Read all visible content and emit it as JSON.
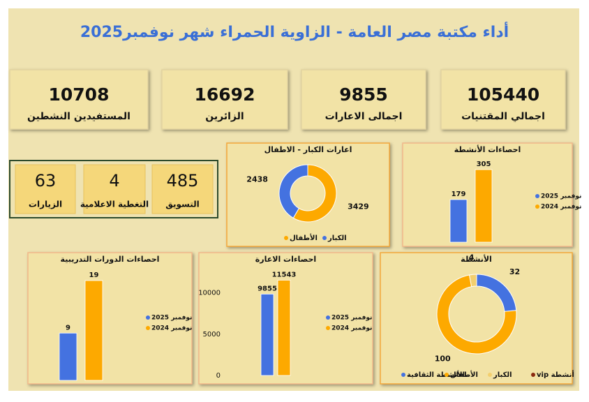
{
  "title": "أداء مكتبة مصر العامة - الزاوية الحمراء شهر نوفمبر2025",
  "kpis": [
    {
      "value": 105440,
      "label": "اجمالي المقتنيات"
    },
    {
      "value": 9855,
      "label": "اجمالى الاعارات"
    },
    {
      "value": 16692,
      "label": "الزائرين"
    },
    {
      "value": 10708,
      "label": "المستفيدين النشطين"
    }
  ],
  "small_kpis": [
    {
      "value": 485,
      "label": "التسويق"
    },
    {
      "value": 4,
      "label": "التغطية الاعلامية"
    },
    {
      "value": 63,
      "label": "الزيارات"
    }
  ],
  "chart_data": [
    {
      "type": "donut",
      "title": "اعارات الكبار - الاطفال",
      "categories": [
        "الأطفال",
        "الكبار"
      ],
      "values": [
        3429,
        2438
      ],
      "colors": [
        "#fda900",
        "#4472e0"
      ]
    },
    {
      "type": "bar",
      "title": "احصاءات الأنشطة",
      "series": [
        {
          "name": "نوفمبر 2025",
          "color": "#4472e0",
          "values": [
            179
          ]
        },
        {
          "name": "نوفمبر 2024",
          "color": "#fda900",
          "values": [
            305
          ]
        }
      ]
    },
    {
      "type": "bar",
      "title": "احصاءات الدورات التدريبية",
      "series": [
        {
          "name": "نوفمبر 2025",
          "color": "#4472e0",
          "values": [
            9
          ]
        },
        {
          "name": "نوفمبر 2024",
          "color": "#fda900",
          "values": [
            19
          ]
        }
      ]
    },
    {
      "type": "bar",
      "title": "احصاءات الاعارة",
      "ylim": [
        0,
        12000
      ],
      "yticks": [
        0,
        5000,
        10000
      ],
      "series": [
        {
          "name": "نوفمبر 2025",
          "color": "#4472e0",
          "values": [
            9855
          ]
        },
        {
          "name": "نوفمبر 2024",
          "color": "#fda900",
          "values": [
            11543
          ]
        }
      ]
    },
    {
      "type": "donut",
      "title": "الأنشطة",
      "categories": [
        "الأنشطة الثقافية",
        "الأطفال",
        "الكبار",
        "أنشطة vip"
      ],
      "values": [
        32,
        100,
        4,
        null
      ],
      "colors": [
        "#4472e0",
        "#fda900",
        "#f3cf6e",
        "#8b2a10"
      ]
    }
  ]
}
